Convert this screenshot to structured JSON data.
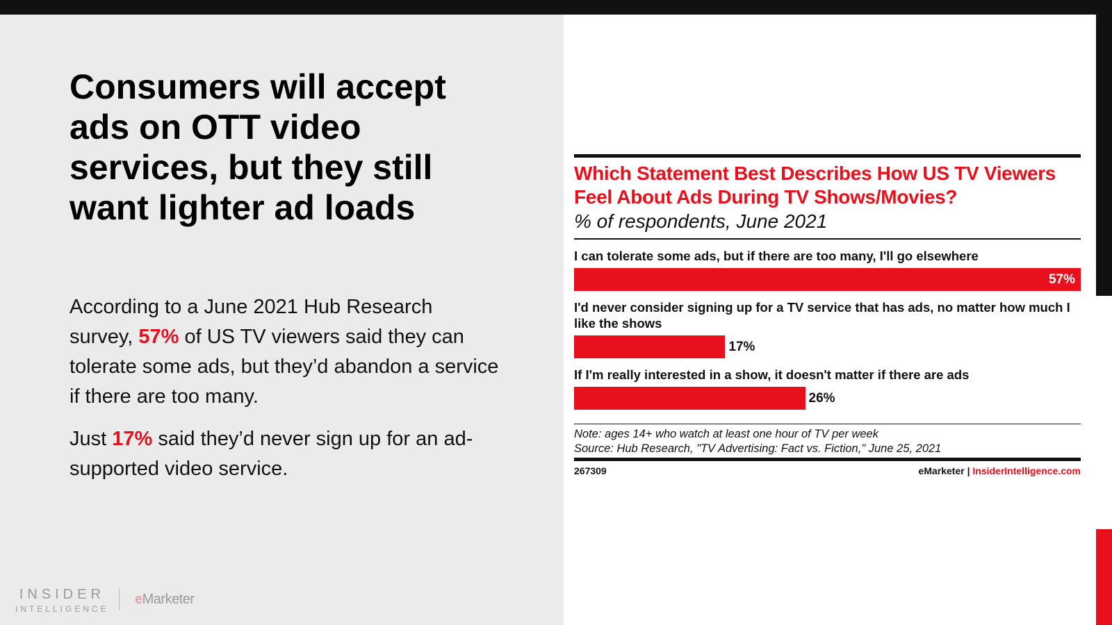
{
  "slide": {
    "headline": "Consumers will accept ads on OTT video services, but they still want lighter ad loads",
    "para1": {
      "pre": "According to a June 2021 Hub Research survey, ",
      "highlight": "57%",
      "post": " of US TV viewers said they can tolerate some ads, but they’d abandon a service if there are too many."
    },
    "para2": {
      "pre": "Just ",
      "highlight": "17%",
      "post": " said they’d never sign up for an ad-supported video service."
    },
    "logo_insider": "INSIDER",
    "logo_intelligence": "INTELLIGENCE",
    "logo_emarketer_e": "e",
    "logo_emarketer_rest": "Marketer"
  },
  "colors": {
    "accent": "#e8101d",
    "dark": "#111111",
    "panel": "#ebebeb"
  },
  "chart_data": {
    "type": "bar",
    "orientation": "horizontal",
    "title": "Which Statement Best Describes How US TV Viewers Feel About Ads During TV Shows/Movies?",
    "subtitle": "% of respondents, June 2021",
    "categories": [
      "I can tolerate some ads, but if there are too many, I'll go elsewhere",
      "I'd never consider signing up for a TV service that has ads, no matter how much I like the shows",
      "If I'm really interested in a show, it doesn't matter if there are ads"
    ],
    "values": [
      57,
      17,
      26
    ],
    "value_labels": [
      "57%",
      "17%",
      "26%"
    ],
    "xlim": [
      0,
      57
    ],
    "grid": false,
    "note": "Note: ages 14+ who watch at least one hour of TV per week",
    "source": "Source: Hub Research, \"TV Advertising: Fact vs. Fiction,\" June 25, 2021",
    "chart_id": "267309",
    "footer_brand": "eMarketer",
    "footer_sep": "|",
    "footer_site": "InsiderIntelligence.com"
  }
}
